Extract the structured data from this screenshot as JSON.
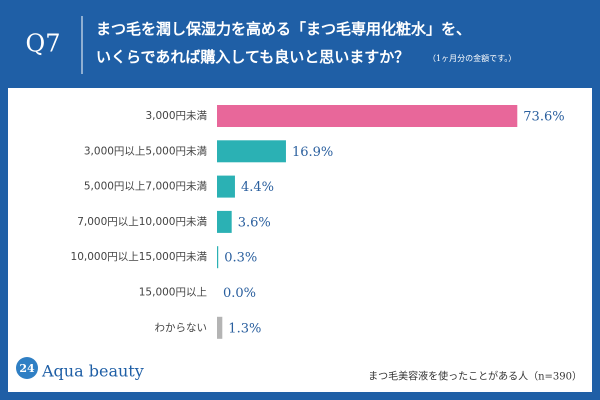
{
  "header": {
    "question": "Q7",
    "title_line1": "まつ毛を潤し保湿力を高める「まつ毛専用化粧水」を、",
    "title_line2": "いくらであれば購入しても良いと思いますか？",
    "title_note": "（1ヶ月分の金額です。）"
  },
  "chart_data": {
    "type": "bar",
    "orientation": "horizontal",
    "categories": [
      "3,000円未満",
      "3,000円以上5,000円未満",
      "5,000円以上7,000円未満",
      "7,000円以上10,000円未満",
      "10,000円以上15,000円未満",
      "15,000円以上",
      "わからない"
    ],
    "values": [
      73.6,
      16.9,
      4.4,
      3.6,
      0.3,
      0.0,
      1.3
    ],
    "value_labels": [
      "73.6%",
      "16.9%",
      "4.4%",
      "3.6%",
      "0.3%",
      "0.0%",
      "1.3%"
    ],
    "colors": [
      "#e8679a",
      "#2bb1b4",
      "#2bb1b4",
      "#2bb1b4",
      "#2bb1b4",
      "#2bb1b4",
      "#b4b4b4"
    ]
  },
  "footer": {
    "brand_number": "24",
    "brand_name": "Aqua beauty",
    "note": "まつ毛美容液を使ったことがある人（n=390）"
  }
}
